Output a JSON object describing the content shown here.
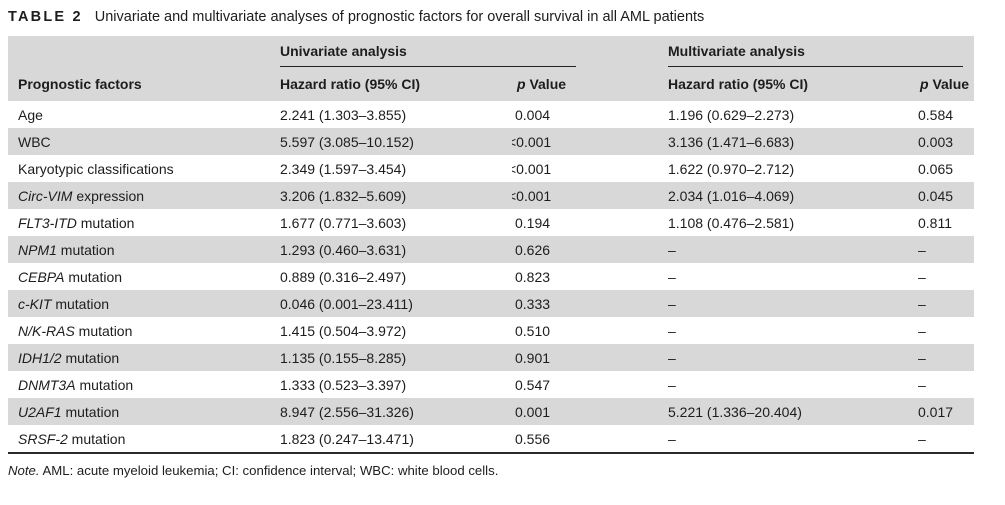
{
  "colors": {
    "header_gray": "#d8d8d8",
    "stripe_gray": "#d8d8d8",
    "rule_dark": "#222222",
    "text": "#1d1d1d"
  },
  "caption": {
    "label": "TABLE 2",
    "title": "Univariate and multivariate analyses of prognostic factors for overall survival in all AML patients"
  },
  "table": {
    "group_headers": {
      "univariate": "Univariate analysis",
      "multivariate": "Multivariate analysis"
    },
    "column_headers": {
      "factor": "Prognostic factors",
      "uni_hr": "Hazard ratio (95% CI)",
      "uni_p_em": "p",
      "uni_p_rest": " Value",
      "multi_hr": "Hazard ratio (95% CI)",
      "multi_p_em": "p",
      "multi_p_rest": " Value"
    },
    "rows": [
      {
        "factor_em": "",
        "factor_rest": "Age",
        "uni_hr": "2.241 (1.303–3.855)",
        "uni_p": "0.004",
        "multi_hr": "1.196 (0.629–2.273)",
        "multi_p": "0.584"
      },
      {
        "factor_em": "",
        "factor_rest": "WBC",
        "uni_hr": "5.597 (3.085–10.152)",
        "uni_p": "<0.001",
        "multi_hr": "3.136 (1.471–6.683)",
        "multi_p": "0.003"
      },
      {
        "factor_em": "",
        "factor_rest": "Karyotypic classifications",
        "uni_hr": "2.349 (1.597–3.454)",
        "uni_p": "<0.001",
        "multi_hr": "1.622 (0.970–2.712)",
        "multi_p": "0.065"
      },
      {
        "factor_em": "Circ-VIM",
        "factor_rest": " expression",
        "uni_hr": "3.206 (1.832–5.609)",
        "uni_p": "<0.001",
        "multi_hr": "2.034 (1.016–4.069)",
        "multi_p": "0.045"
      },
      {
        "factor_em": "FLT3-ITD",
        "factor_rest": " mutation",
        "uni_hr": "1.677 (0.771–3.603)",
        "uni_p": "0.194",
        "multi_hr": "1.108 (0.476–2.581)",
        "multi_p": "0.811"
      },
      {
        "factor_em": "NPM1",
        "factor_rest": " mutation",
        "uni_hr": "1.293 (0.460–3.631)",
        "uni_p": "0.626",
        "multi_hr": "–",
        "multi_p": "–"
      },
      {
        "factor_em": "CEBPA",
        "factor_rest": " mutation",
        "uni_hr": "0.889 (0.316–2.497)",
        "uni_p": "0.823",
        "multi_hr": "–",
        "multi_p": "–"
      },
      {
        "factor_em": "c-KIT",
        "factor_rest": " mutation",
        "uni_hr": "0.046 (0.001–23.411)",
        "uni_p": "0.333",
        "multi_hr": "–",
        "multi_p": "–"
      },
      {
        "factor_em": "N/K-RAS",
        "factor_rest": " mutation",
        "uni_hr": "1.415 (0.504–3.972)",
        "uni_p": "0.510",
        "multi_hr": "–",
        "multi_p": "–"
      },
      {
        "factor_em": "IDH1/2",
        "factor_rest": " mutation",
        "uni_hr": "1.135 (0.155–8.285)",
        "uni_p": "0.901",
        "multi_hr": "–",
        "multi_p": "–"
      },
      {
        "factor_em": "DNMT3A",
        "factor_rest": " mutation",
        "uni_hr": "1.333 (0.523–3.397)",
        "uni_p": "0.547",
        "multi_hr": "–",
        "multi_p": "–"
      },
      {
        "factor_em": "U2AF1",
        "factor_rest": " mutation",
        "uni_hr": "8.947 (2.556–31.326)",
        "uni_p": "0.001",
        "multi_hr": "5.221 (1.336–20.404)",
        "multi_p": "0.017"
      },
      {
        "factor_em": "SRSF-2",
        "factor_rest": " mutation",
        "uni_hr": "1.823 (0.247–13.471)",
        "uni_p": "0.556",
        "multi_hr": "–",
        "multi_p": "–"
      }
    ]
  },
  "note": {
    "label": "Note.",
    "text": " AML: acute myeloid leukemia; CI: confidence interval; WBC: white blood cells."
  }
}
